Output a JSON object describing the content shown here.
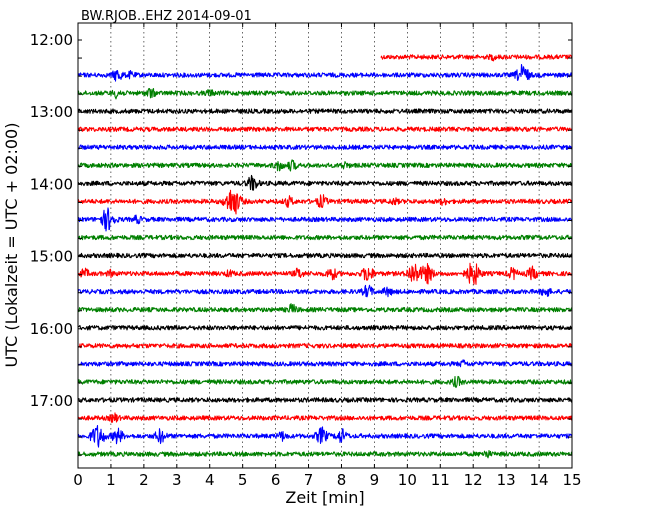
{
  "chart_data": {
    "type": "line",
    "title": "BW.RJOB..EHZ 2014-09-01",
    "xlabel": "Zeit  [min]",
    "ylabel": "UTC (Lokalzeit = UTC + 02:00)",
    "xlim": [
      0,
      15
    ],
    "x_ticks": [
      "0",
      "1",
      "2",
      "3",
      "4",
      "5",
      "6",
      "7",
      "8",
      "9",
      "10",
      "11",
      "12",
      "13",
      "14",
      "15"
    ],
    "y_tick_labels": [
      "12:00",
      "13:00",
      "14:00",
      "15:00",
      "16:00",
      "17:00"
    ],
    "grid": "vertical dotted lines at each minute",
    "trace_colors": [
      "#ff0000",
      "#0000ff",
      "#008000",
      "#000000"
    ],
    "traces": [
      {
        "time": "12:15",
        "color": "#ff0000",
        "start_min": 9.2,
        "events": [
          {
            "t": 12.6,
            "amp": 0.15
          }
        ]
      },
      {
        "time": "12:30",
        "color": "#0000ff",
        "events": [
          {
            "t": 1.2,
            "amp": 0.45
          },
          {
            "t": 1.6,
            "amp": 0.2
          },
          {
            "t": 13.5,
            "amp": 0.75
          }
        ]
      },
      {
        "time": "12:45",
        "color": "#008000",
        "events": [
          {
            "t": 1.2,
            "amp": 0.35
          },
          {
            "t": 2.2,
            "amp": 0.35
          },
          {
            "t": 4.0,
            "amp": 0.2
          }
        ]
      },
      {
        "time": "13:00",
        "color": "#000000",
        "events": []
      },
      {
        "time": "13:15",
        "color": "#ff0000",
        "events": []
      },
      {
        "time": "13:30",
        "color": "#0000ff",
        "events": []
      },
      {
        "time": "13:45",
        "color": "#008000",
        "events": [
          {
            "t": 6.1,
            "amp": 0.35
          },
          {
            "t": 6.5,
            "amp": 0.35
          },
          {
            "t": 8.1,
            "amp": 0.2
          }
        ]
      },
      {
        "time": "14:00",
        "color": "#000000",
        "events": [
          {
            "t": 5.3,
            "amp": 0.55
          }
        ]
      },
      {
        "time": "14:15",
        "color": "#ff0000",
        "events": [
          {
            "t": 4.7,
            "amp": 1.1
          },
          {
            "t": 6.4,
            "amp": 0.35
          },
          {
            "t": 7.4,
            "amp": 0.45
          },
          {
            "t": 9.6,
            "amp": 0.2
          },
          {
            "t": 11.1,
            "amp": 0.2
          }
        ]
      },
      {
        "time": "14:30",
        "color": "#0000ff",
        "events": [
          {
            "t": 0.9,
            "amp": 0.85
          },
          {
            "t": 1.8,
            "amp": 0.25
          }
        ]
      },
      {
        "time": "14:45",
        "color": "#008000",
        "events": []
      },
      {
        "time": "15:00",
        "color": "#000000",
        "events": []
      },
      {
        "time": "15:15",
        "color": "#ff0000",
        "events": [
          {
            "t": 0.2,
            "amp": 0.3
          },
          {
            "t": 1.0,
            "amp": 0.2
          },
          {
            "t": 4.6,
            "amp": 0.2
          },
          {
            "t": 6.7,
            "amp": 0.35
          },
          {
            "t": 7.7,
            "amp": 0.45
          },
          {
            "t": 8.8,
            "amp": 0.6
          },
          {
            "t": 10.2,
            "amp": 0.8
          },
          {
            "t": 10.6,
            "amp": 0.7
          },
          {
            "t": 12.0,
            "amp": 0.9
          },
          {
            "t": 13.2,
            "amp": 0.4
          },
          {
            "t": 13.8,
            "amp": 0.45
          }
        ]
      },
      {
        "time": "15:30",
        "color": "#0000ff",
        "events": [
          {
            "t": 8.8,
            "amp": 0.45
          },
          {
            "t": 9.4,
            "amp": 0.3
          },
          {
            "t": 14.2,
            "amp": 0.35
          }
        ]
      },
      {
        "time": "15:45",
        "color": "#008000",
        "events": [
          {
            "t": 6.5,
            "amp": 0.35
          }
        ]
      },
      {
        "time": "16:00",
        "color": "#000000",
        "events": []
      },
      {
        "time": "16:15",
        "color": "#ff0000",
        "events": []
      },
      {
        "time": "16:30",
        "color": "#0000ff",
        "events": [
          {
            "t": 11.7,
            "amp": 0.2
          }
        ]
      },
      {
        "time": "16:45",
        "color": "#008000",
        "events": [
          {
            "t": 11.5,
            "amp": 0.35
          }
        ]
      },
      {
        "time": "17:00",
        "color": "#000000",
        "events": []
      },
      {
        "time": "17:15",
        "color": "#ff0000",
        "events": [
          {
            "t": 1.1,
            "amp": 0.3
          }
        ]
      },
      {
        "time": "17:30",
        "color": "#0000ff",
        "events": [
          {
            "t": 0.6,
            "amp": 0.85
          },
          {
            "t": 1.2,
            "amp": 0.55
          },
          {
            "t": 2.5,
            "amp": 0.5
          },
          {
            "t": 6.2,
            "amp": 0.3
          },
          {
            "t": 7.4,
            "amp": 0.6
          },
          {
            "t": 8.0,
            "amp": 0.5
          }
        ]
      },
      {
        "time": "17:45",
        "color": "#008000",
        "events": [
          {
            "t": 12.4,
            "amp": 0.25
          }
        ]
      }
    ]
  }
}
